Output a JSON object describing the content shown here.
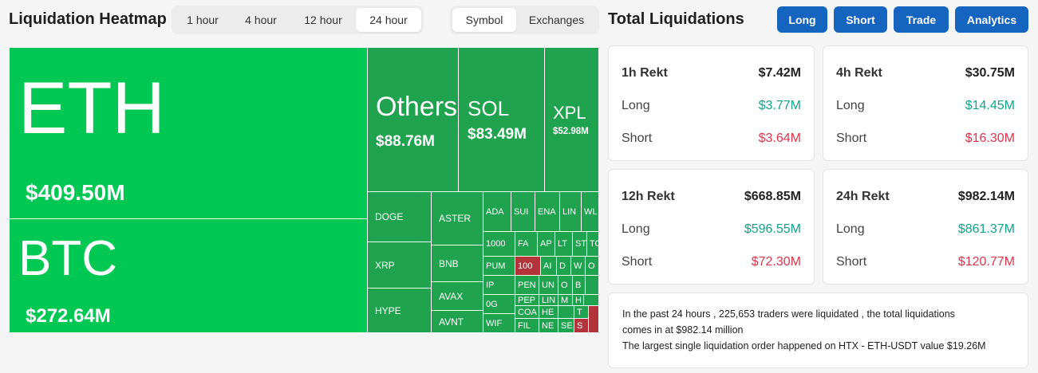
{
  "header": {
    "title": "Liquidation Heatmap",
    "time_tabs": [
      "1 hour",
      "4 hour",
      "12 hour",
      "24 hour"
    ],
    "active_time_tab": "24 hour",
    "group_tabs": [
      "Symbol",
      "Exchanges"
    ],
    "active_group_tab": "Symbol"
  },
  "panel": {
    "title": "Total Liquidations",
    "actions": [
      "Long",
      "Short",
      "Trade",
      "Analytics"
    ]
  },
  "heatmap": {
    "eth": {
      "symbol": "ETH",
      "value": "$409.50M"
    },
    "btc": {
      "symbol": "BTC",
      "value": "$272.64M"
    },
    "others": {
      "symbol": "Others",
      "value": "$88.76M"
    },
    "sol": {
      "symbol": "SOL",
      "value": "$83.49M"
    },
    "xpl": {
      "symbol": "XPL",
      "value": "$52.98M"
    },
    "small": [
      "DOGE",
      "ASTER",
      "XRP",
      "BNB",
      "HYPE",
      "AVAX",
      "AVNT"
    ],
    "tiny": [
      "ADA",
      "SUI",
      "ENA",
      "LIN",
      "WL",
      "1000",
      "FA",
      "AP",
      "LT",
      "ST",
      "TO",
      "PUM",
      "100",
      "AI",
      "D",
      "W",
      "O",
      "IP",
      "PEN",
      "UN",
      "O",
      "B",
      "0G",
      "PEP",
      "LIN",
      "M",
      "H",
      "WIF",
      "COA",
      "FIL",
      "HE",
      "NE",
      "SE",
      "T",
      "S"
    ]
  },
  "cards": [
    {
      "period": "1h Rekt",
      "total": "$7.42M",
      "long_label": "Long",
      "long": "$3.77M",
      "short_label": "Short",
      "short": "$3.64M"
    },
    {
      "period": "4h Rekt",
      "total": "$30.75M",
      "long_label": "Long",
      "long": "$14.45M",
      "short_label": "Short",
      "short": "$16.30M"
    },
    {
      "period": "12h Rekt",
      "total": "$668.85M",
      "long_label": "Long",
      "long": "$596.55M",
      "short_label": "Short",
      "short": "$72.30M"
    },
    {
      "period": "24h Rekt",
      "total": "$982.14M",
      "long_label": "Long",
      "long": "$861.37M",
      "short_label": "Short",
      "short": "$120.77M"
    }
  ],
  "summary": {
    "line1": "In the past 24 hours , 225,653 traders were liquidated , the total liquidations",
    "line2": "comes in at $982.14 million",
    "line3": "The largest single liquidation order happened on HTX - ETH-USDT value $19.26M"
  },
  "colors": {
    "accent": "#1565c0",
    "long": "#14a38b",
    "short": "#e0354a",
    "tile_green": "#00c853",
    "tile_red": "#b3333a"
  }
}
